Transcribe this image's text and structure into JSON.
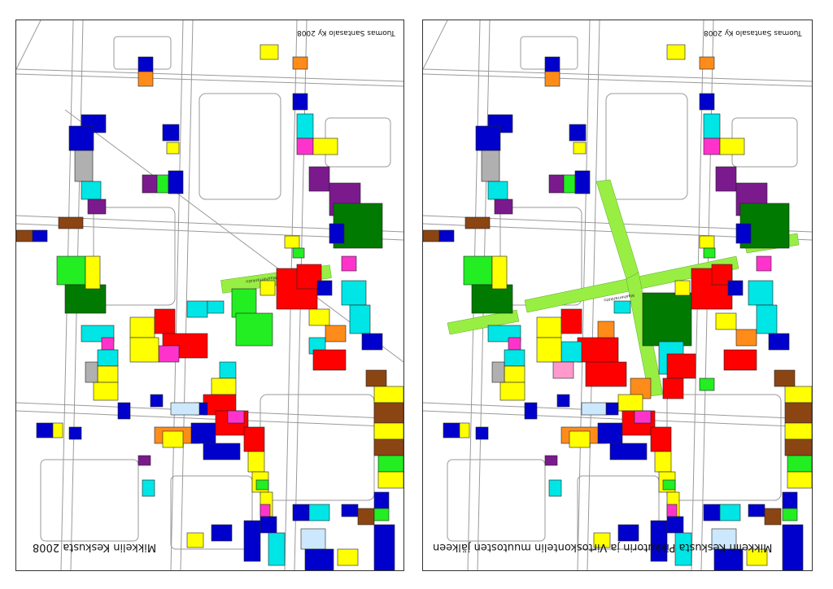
{
  "maps": [
    {
      "title": "Mikkelin Keskusta 2008",
      "credit": "Tuomas Santasalo Ky 2008",
      "street_label": "Maaherrankatu"
    },
    {
      "title": "Mikkelin Keskusta Pikkutorin ja Virtoskontelin muutosten jälkeen",
      "credit": "Tuomas Santasalo Ky 2008",
      "street_label": "Maaherrankatu"
    }
  ],
  "colors": {
    "red": "#ff0000",
    "yellow": "#ffff00",
    "blue": "#0000cc",
    "cyan": "#00e5e5",
    "purple": "#7a1a8c",
    "dark_green": "#007a00",
    "light_green": "#22ee22",
    "pedestrian_green": "#99ee44",
    "magenta": "#ff33cc",
    "orange": "#ff8c1a",
    "brown": "#8b4513",
    "gray": "#b0b0b0",
    "pink": "#ff99cc",
    "light_blue": "#cce8ff"
  }
}
